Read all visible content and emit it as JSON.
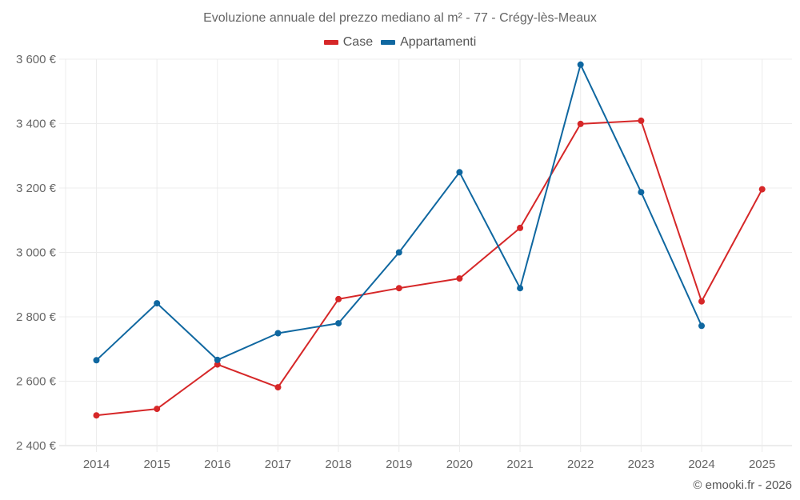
{
  "chart_data": {
    "type": "line",
    "title": "Evoluzione annuale del prezzo mediano al m² - 77 - Crégy-lès-Meaux",
    "xlabel": "",
    "ylabel": "",
    "x": [
      "2014",
      "2015",
      "2016",
      "2017",
      "2018",
      "2019",
      "2020",
      "2021",
      "2022",
      "2023",
      "2024",
      "2025"
    ],
    "ylim": [
      2400,
      3600
    ],
    "yticks": [
      2400,
      2600,
      2800,
      3000,
      3200,
      3400,
      3600
    ],
    "ytick_labels": [
      "2 400 €",
      "2 600 €",
      "2 800 €",
      "3 000 €",
      "3 200 €",
      "3 400 €",
      "3 600 €"
    ],
    "grid": true,
    "legend_position": "top-center",
    "series": [
      {
        "name": "Case",
        "color": "#d62728",
        "values": [
          2494,
          2514,
          2652,
          2581,
          2855,
          2889,
          2919,
          3076,
          3399,
          3409,
          2848,
          3196
        ]
      },
      {
        "name": "Appartamenti",
        "color": "#0f67a0",
        "values": [
          2665,
          2842,
          2666,
          2749,
          2780,
          3000,
          3249,
          2889,
          3583,
          3187,
          2772,
          null
        ]
      }
    ]
  },
  "footer": {
    "credit": "© emooki.fr - 2026"
  }
}
